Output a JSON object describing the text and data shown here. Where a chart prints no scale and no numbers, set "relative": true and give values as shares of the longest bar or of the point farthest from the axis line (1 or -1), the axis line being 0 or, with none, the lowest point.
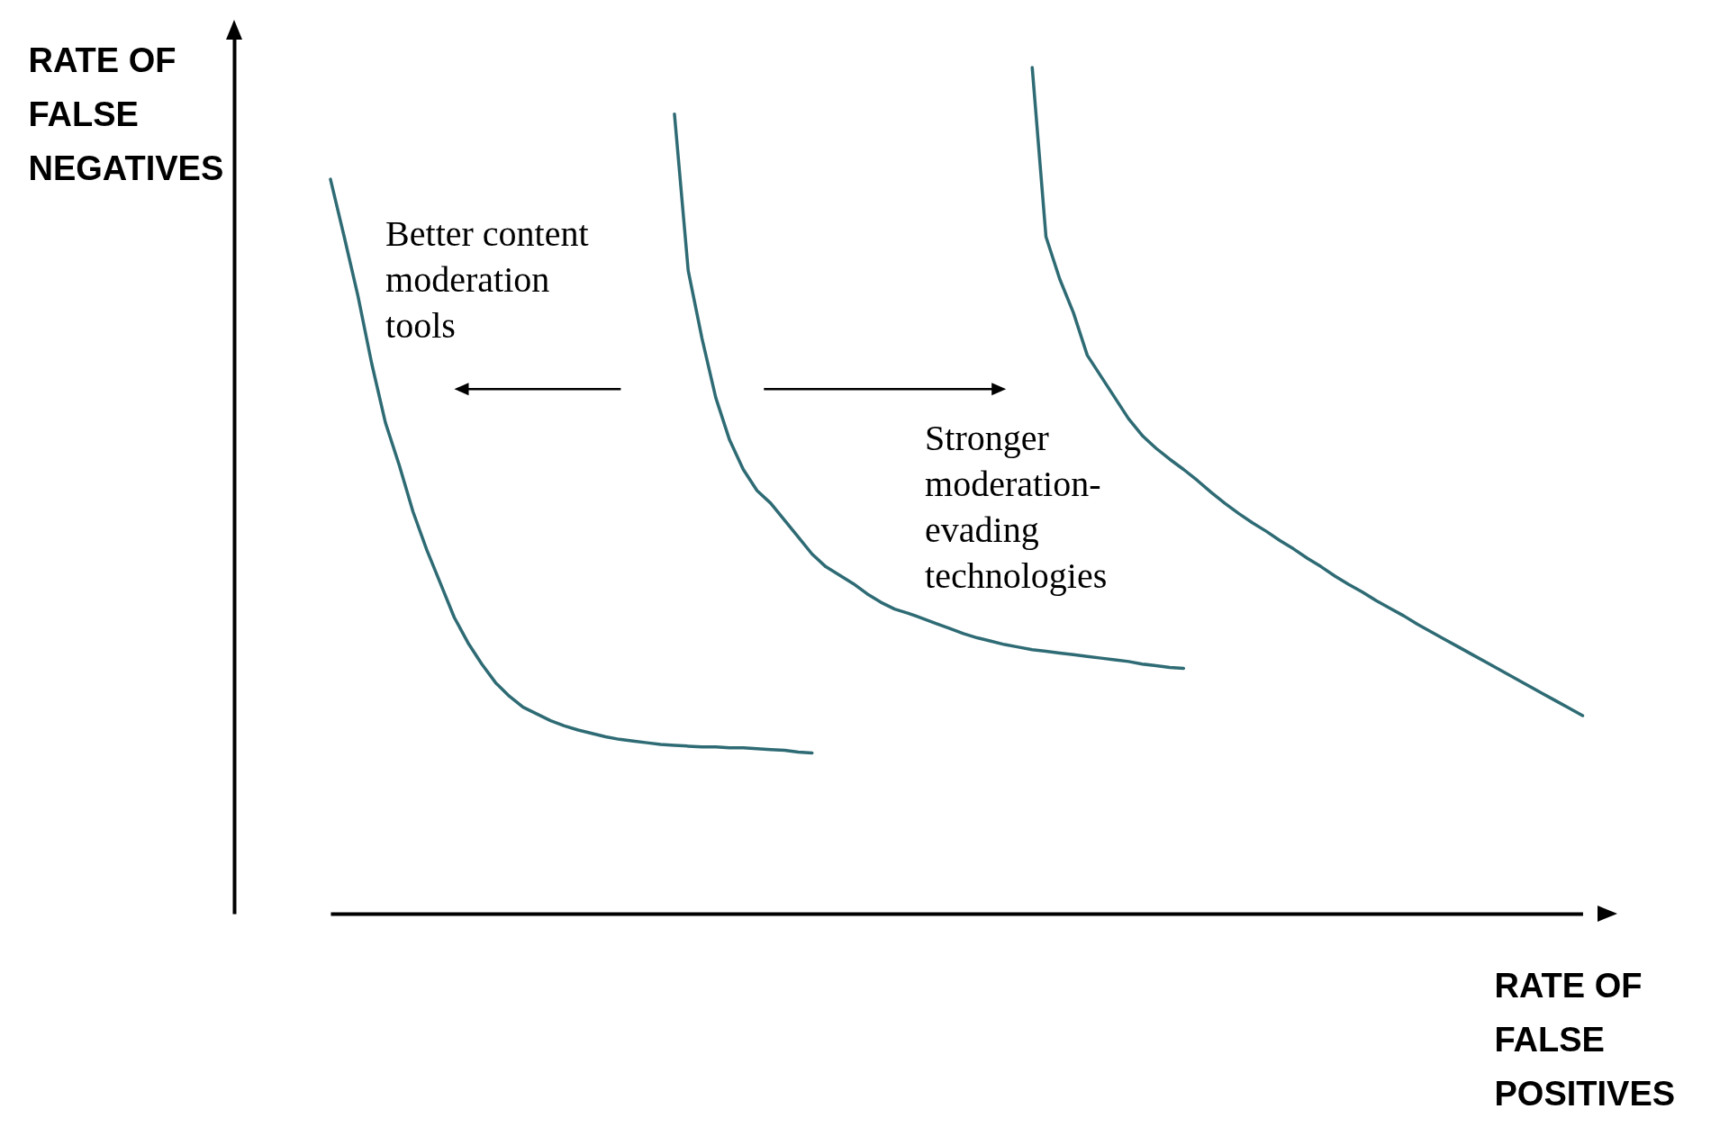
{
  "chart_data": {
    "type": "line",
    "relative": true,
    "xlabel": "RATE OF FALSE POSITIVES",
    "ylabel": "RATE OF FALSE NEGATIVES",
    "tick_labels": false,
    "line_style": "solid",
    "marker": "none",
    "annotations": [
      "Better content moderation tools",
      "Stronger moderation-evading technologies"
    ],
    "categories": [
      null,
      null,
      null,
      null,
      null,
      null,
      null,
      null,
      null,
      null,
      null,
      null,
      null,
      null,
      null,
      null,
      null,
      null,
      null,
      null,
      null,
      null,
      null,
      null,
      null,
      null,
      null,
      null,
      null,
      null,
      null,
      null,
      null,
      null,
      null,
      null,
      null,
      null,
      null,
      null,
      null,
      null,
      null,
      null,
      null,
      null,
      null,
      null,
      null,
      null,
      null,
      null,
      null,
      null,
      null,
      null,
      null,
      null,
      null,
      null,
      null,
      null,
      null,
      null,
      null,
      null,
      null,
      null,
      null,
      null,
      null,
      null,
      null,
      null,
      null,
      null,
      null,
      null,
      null,
      null,
      null,
      null,
      null,
      null,
      null,
      null,
      null,
      null,
      null,
      null,
      null,
      null
    ],
    "series": [
      {
        "color": "#2e6b74",
        "values": [
          0.868,
          0.8,
          0.73,
          0.65,
          0.58,
          0.53,
          0.475,
          0.43,
          0.39,
          0.35,
          0.32,
          0.295,
          0.273,
          0.257,
          0.244,
          0.236,
          0.228,
          0.222,
          0.217,
          0.213,
          0.209,
          0.206,
          0.204,
          0.202,
          0.2,
          0.199,
          0.198,
          0.197,
          0.197,
          0.196,
          0.196,
          0.195,
          0.194,
          0.193,
          0.191,
          0.19,
          null,
          null,
          null,
          null,
          null,
          null,
          null,
          null,
          null,
          null,
          null,
          null,
          null,
          null,
          null,
          null,
          null,
          null,
          null,
          null,
          null,
          null,
          null,
          null,
          null,
          null,
          null,
          null,
          null,
          null,
          null,
          null,
          null,
          null,
          null,
          null,
          null,
          null,
          null,
          null,
          null,
          null,
          null,
          null,
          null,
          null,
          null,
          null,
          null,
          null,
          null,
          null,
          null,
          null,
          null,
          null
        ]
      },
      {
        "color": "#2e6b74",
        "values": [
          null,
          null,
          null,
          null,
          null,
          null,
          null,
          null,
          null,
          null,
          null,
          null,
          null,
          null,
          null,
          null,
          null,
          null,
          null,
          null,
          null,
          null,
          null,
          null,
          null,
          0.945,
          0.76,
          0.68,
          0.61,
          0.56,
          0.525,
          0.5,
          0.485,
          0.465,
          0.445,
          0.425,
          0.41,
          0.4,
          0.39,
          0.378,
          0.368,
          0.36,
          0.355,
          0.349,
          0.343,
          0.337,
          0.331,
          0.326,
          0.322,
          0.318,
          0.315,
          0.312,
          0.31,
          0.308,
          0.306,
          0.304,
          0.302,
          0.3,
          0.298,
          0.295,
          0.293,
          0.291,
          0.29,
          null,
          null,
          null,
          null,
          null,
          null,
          null,
          null,
          null,
          null,
          null,
          null,
          null,
          null,
          null,
          null,
          null,
          null,
          null,
          null,
          null,
          null,
          null,
          null,
          null,
          null,
          null,
          null,
          null
        ]
      },
      {
        "color": "#2e6b74",
        "values": [
          null,
          null,
          null,
          null,
          null,
          null,
          null,
          null,
          null,
          null,
          null,
          null,
          null,
          null,
          null,
          null,
          null,
          null,
          null,
          null,
          null,
          null,
          null,
          null,
          null,
          null,
          null,
          null,
          null,
          null,
          null,
          null,
          null,
          null,
          null,
          null,
          null,
          null,
          null,
          null,
          null,
          null,
          null,
          null,
          null,
          null,
          null,
          null,
          null,
          null,
          null,
          1.0,
          0.8,
          0.75,
          0.71,
          0.66,
          0.635,
          0.61,
          0.585,
          0.565,
          0.55,
          0.537,
          0.525,
          0.512,
          0.498,
          0.485,
          0.473,
          0.462,
          0.452,
          0.441,
          0.431,
          0.42,
          0.41,
          0.399,
          0.389,
          0.38,
          0.37,
          0.361,
          0.352,
          0.342,
          0.333,
          0.324,
          0.315,
          0.306,
          0.297,
          0.288,
          0.279,
          0.27,
          0.261,
          0.252,
          0.243,
          0.234
        ]
      }
    ]
  }
}
